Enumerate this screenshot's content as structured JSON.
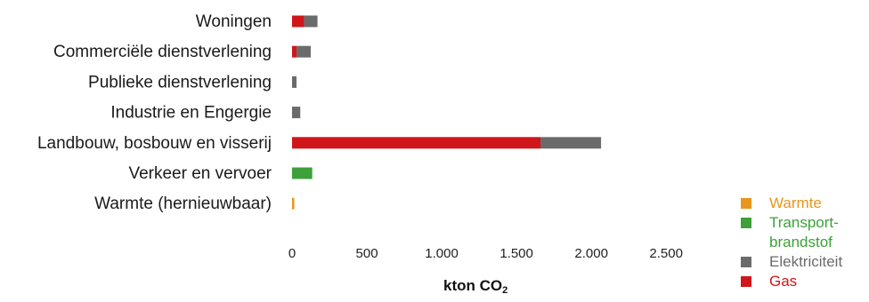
{
  "chart_data": {
    "type": "bar",
    "orientation": "horizontal",
    "stacked": true,
    "categories": [
      "Woningen",
      "Commerciële dienstverlening",
      "Publieke dienstverlening",
      "Industrie en Engergie",
      "Landbouw, bosbouw en visserij",
      "Verkeer en vervoer",
      "Warmte (hernieuwbaar)"
    ],
    "series": [
      {
        "name": "Gas",
        "color": "#d0161a",
        "values": [
          80,
          30,
          0,
          0,
          1660,
          0,
          0
        ]
      },
      {
        "name": "Elektriciteit",
        "color": "#6b6b6b",
        "values": [
          90,
          95,
          30,
          55,
          405,
          0,
          0
        ]
      },
      {
        "name": "Transport-brandstof",
        "color": "#3ea03a",
        "values": [
          0,
          0,
          0,
          0,
          0,
          135,
          0
        ]
      },
      {
        "name": "Warmte",
        "color": "#e8961e",
        "values": [
          0,
          0,
          0,
          0,
          0,
          0,
          15
        ]
      }
    ],
    "legend_order": [
      "Warmte",
      "Transport-brandstof",
      "Elektriciteit",
      "Gas"
    ],
    "legend_labels": [
      "Warmte",
      "Transport-\nbrandstof",
      "Elektriciteit",
      "Gas"
    ],
    "x_ticks": [
      "0",
      "500",
      "1.000",
      "1.500",
      "2.000",
      "2.500"
    ],
    "x_tick_values": [
      0,
      500,
      1000,
      1500,
      2000,
      2500
    ],
    "xlim": [
      0,
      2600
    ],
    "xlabel": "kton CO",
    "xlabel_sub": "2",
    "title": "",
    "grid": false,
    "legend_position": "bottom-right"
  }
}
